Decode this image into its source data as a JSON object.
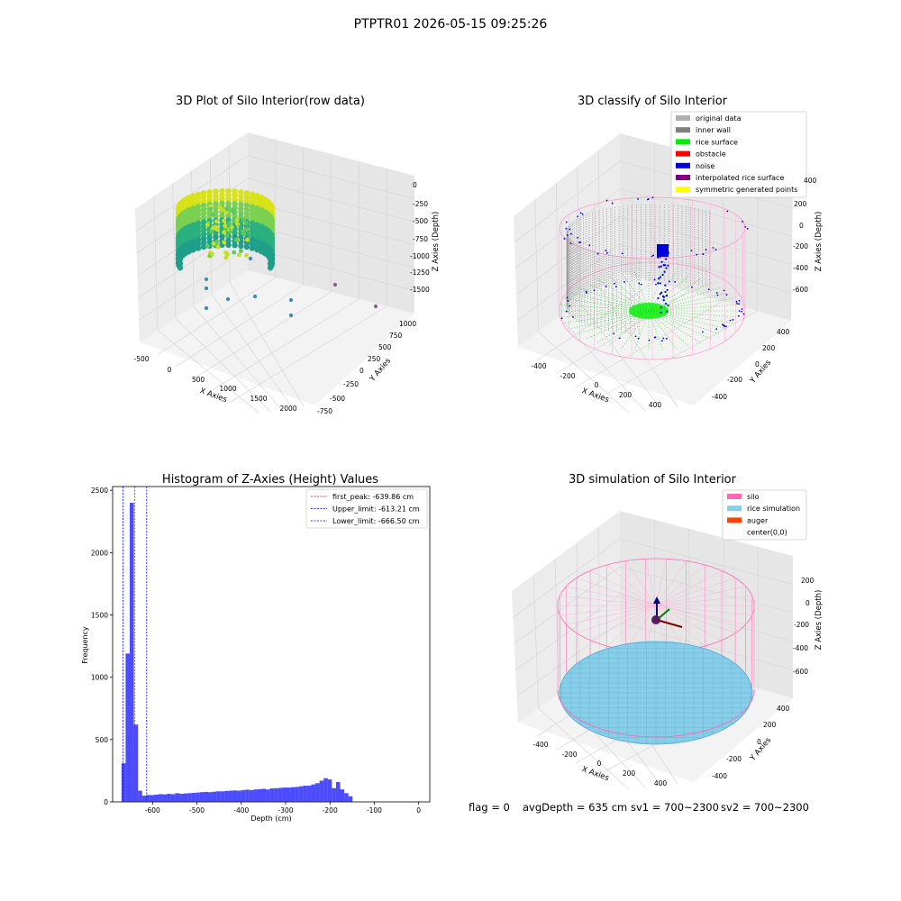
{
  "suptitle": "PTPTR01 2026-05-15 09:25:26",
  "footer": {
    "flag": "flag = 0",
    "avg_depth": "avgDepth = 635 cm",
    "sv1": "sv1 = 700~2300",
    "sv2": "sv2 = 700~2300"
  },
  "panels": {
    "raw": {
      "title": "3D Plot of Silo Interior(row data)",
      "xlabel": "X Axies",
      "ylabel": "Y Axies",
      "zlabel": "Z Axies (Depth)",
      "xticks": [
        "-500",
        "0",
        "500",
        "1000",
        "1500",
        "2000"
      ],
      "yticks": [
        "-750",
        "-500",
        "-250",
        "0",
        "250",
        "500",
        "750",
        "1000"
      ],
      "zticks": [
        "0",
        "-250",
        "-500",
        "-750",
        "-1000",
        "-1250",
        "-1500"
      ]
    },
    "classify": {
      "title": "3D classify of Silo Interior",
      "xlabel": "X Axies",
      "ylabel": "Y Axies",
      "zlabel": "Z Axies (Depth)",
      "xticks": [
        "-400",
        "-200",
        "0",
        "200",
        "400"
      ],
      "yticks": [
        "-400",
        "-200",
        "0",
        "200",
        "400"
      ],
      "zticks": [
        "200",
        "0",
        "-200",
        "-400",
        "-600"
      ],
      "zticks_top": "400",
      "legend": [
        {
          "label": "original data",
          "color": "#b0b0b0"
        },
        {
          "label": "inner wall",
          "color": "#808080"
        },
        {
          "label": "rice surface",
          "color": "#00ee00"
        },
        {
          "label": "obstacle",
          "color": "#ff0000"
        },
        {
          "label": "noise",
          "color": "#0000dd"
        },
        {
          "label": "interpolated rice surface",
          "color": "#800080"
        },
        {
          "label": "symmetric generated points",
          "color": "#ffff00"
        }
      ]
    },
    "simulation": {
      "title": "3D simulation of Silo Interior",
      "xlabel": "X Axies",
      "ylabel": "Y Axies",
      "zlabel": "Z Axies (Depth)",
      "xticks": [
        "-400",
        "-200",
        "0",
        "200",
        "400"
      ],
      "yticks": [
        "-400",
        "-200",
        "0",
        "200",
        "400"
      ],
      "zticks": [
        "200",
        "0",
        "-200",
        "-400",
        "-600"
      ],
      "legend": [
        {
          "label": "silo",
          "color": "#ff69b4"
        },
        {
          "label": "rice simulation",
          "color": "#87ceeb"
        },
        {
          "label": "auger",
          "color": "#ff4500"
        },
        {
          "label": "center(0,0)",
          "color": "#ffffff"
        }
      ]
    }
  },
  "chart_data": [
    {
      "type": "bar",
      "title": "Histogram of Z-Axies (Height) Values",
      "xlabel": "Depth (cm)",
      "ylabel": "Frequency",
      "xlim": [
        -690,
        25
      ],
      "ylim": [
        0,
        2530
      ],
      "xticks": [
        -600,
        -500,
        -400,
        -300,
        -200,
        -100,
        0
      ],
      "yticks": [
        0,
        500,
        1000,
        1500,
        2000,
        2500
      ],
      "bar_color": "#0000ff",
      "bin_start": -670,
      "bin_width": 9.3,
      "values": [
        310,
        1190,
        2400,
        620,
        90,
        50,
        55,
        55,
        58,
        62,
        60,
        65,
        62,
        70,
        65,
        68,
        70,
        72,
        75,
        78,
        80,
        78,
        82,
        85,
        85,
        88,
        90,
        92,
        90,
        95,
        98,
        95,
        100,
        102,
        105,
        100,
        108,
        110,
        112,
        115,
        115,
        118,
        120,
        125,
        130,
        130,
        140,
        150,
        170,
        190,
        180,
        110,
        160,
        100,
        70,
        45
      ],
      "lines": [
        {
          "label": "first_peak: -639.86 cm",
          "x": -639.86,
          "color": "#ff0000"
        },
        {
          "label": "Upper_limit: -613.21 cm",
          "x": -613.21,
          "color": "#0000ff"
        },
        {
          "label": "Lower_limit: -666.50 cm",
          "x": -666.5,
          "color": "#0000ff"
        }
      ],
      "legend_loc": "upper right"
    }
  ]
}
